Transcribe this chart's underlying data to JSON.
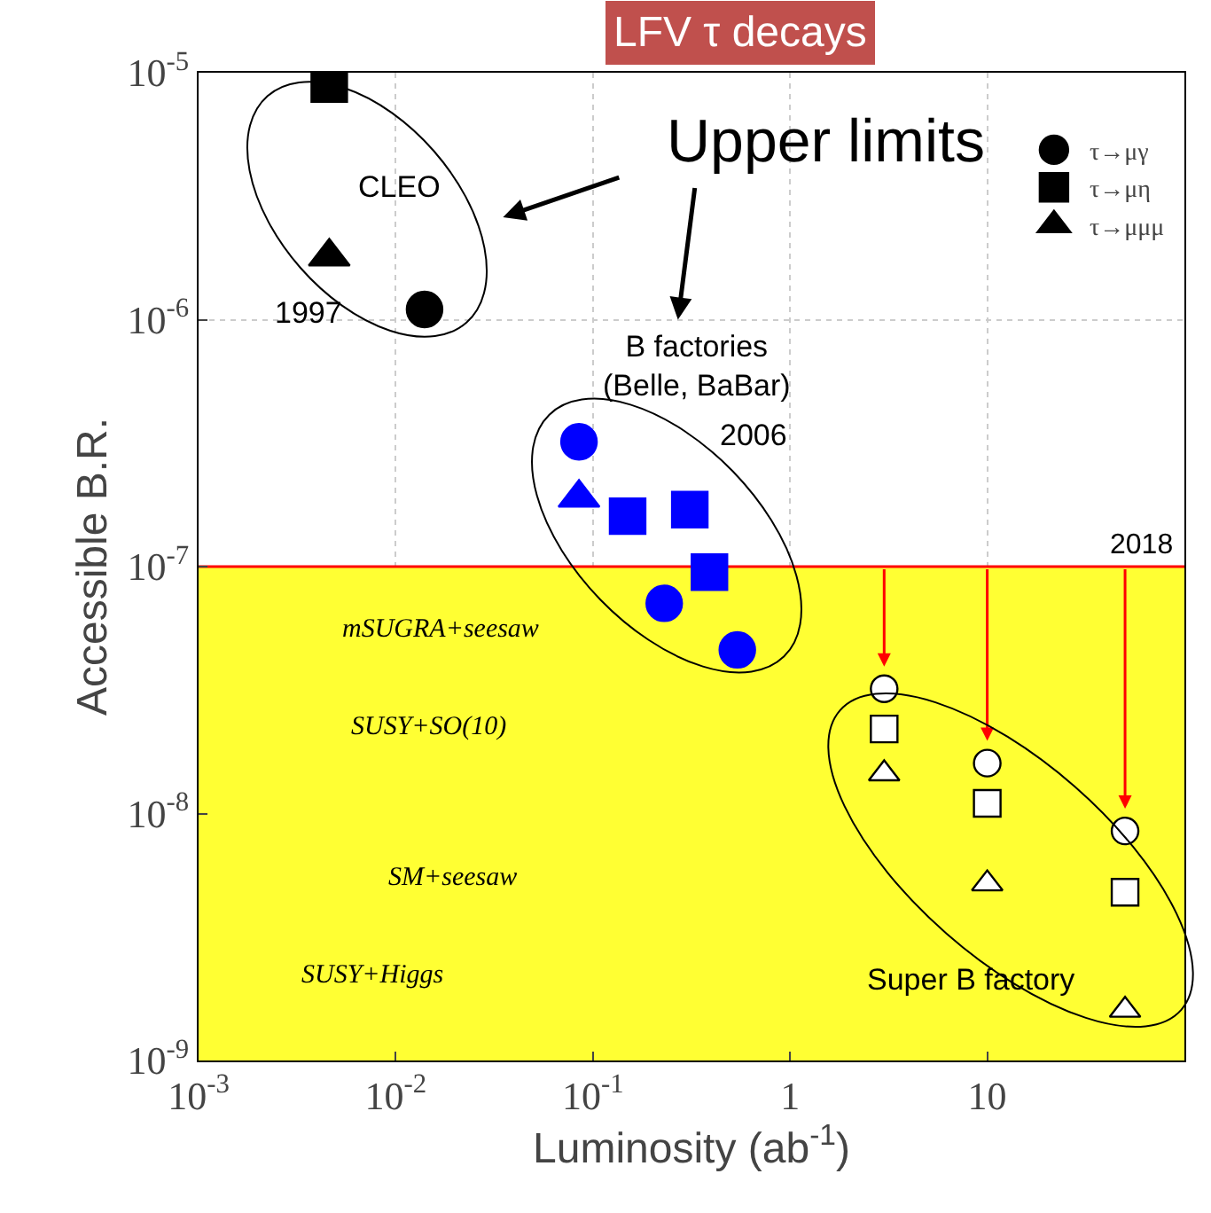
{
  "chart_data": {
    "type": "scatter",
    "title": "LFV τ decays",
    "xlabel": "Luminosity (ab$^{-1}$)",
    "ylabel": "Accessible B.R.",
    "log": "xy",
    "grid": true,
    "legend": "top right",
    "xlim": [
      0.001,
      100
    ],
    "xticks": [
      {
        "value": 0.001,
        "label": "10$^{-3}$"
      },
      {
        "value": 0.01,
        "label": "10$^{-2}$"
      },
      {
        "value": 0.1,
        "label": "10$^{-1}$"
      },
      1,
      10
    ],
    "ylim": [
      1e-09,
      1e-05
    ],
    "yticks": [
      {
        "value": 1e-09,
        "label": "10$^{-9}$"
      },
      {
        "value": 1e-08,
        "label": "10$^{-8}$"
      },
      {
        "value": 1e-07,
        "label": "10$^{-7}$"
      },
      {
        "value": 1e-06,
        "label": "10$^{-6}$"
      },
      {
        "value": 1e-05,
        "label": "10$^{-5}$"
      }
    ],
    "series": [
      {
        "name": "τ→μγ",
        "color": "#000000",
        "marker": "circle",
        "x": [
          0.014
        ],
        "values": [
          1.1e-06
        ]
      },
      {
        "name": "τ→μη",
        "color": "#000000",
        "marker": "square",
        "x": [
          0.0046
        ],
        "values": [
          9e-06
        ]
      },
      {
        "name": "τ→μμμ",
        "color": "#000000",
        "marker": "triangle",
        "x": [
          0.0046
        ],
        "values": [
          1.8e-06
        ]
      },
      {
        "color": "#0000ff",
        "marker": "circle",
        "x": [
          0.085,
          0.23,
          0.54
        ],
        "values": [
          3.2e-07,
          7.1e-08,
          4.6e-08
        ]
      },
      {
        "color": "#0000ff",
        "marker": "square",
        "x": [
          0.15,
          0.31,
          0.39
        ],
        "values": [
          1.6e-07,
          1.7e-07,
          9.5e-08
        ]
      },
      {
        "color": "#0000ff",
        "marker": "triangle",
        "x": [
          0.085
        ],
        "values": [
          1.9e-07
        ]
      },
      {
        "color": "#ffffff",
        "marker": "circle",
        "x": [
          3,
          10,
          50
        ],
        "values": [
          3.2e-08,
          1.6e-08,
          8.5e-09
        ]
      },
      {
        "color": "#ffffff",
        "marker": "square",
        "x": [
          3,
          10,
          50
        ],
        "values": [
          2.2e-08,
          1.1e-08,
          4.8e-09
        ]
      },
      {
        "color": "#ffffff",
        "marker": "triangle",
        "x": [
          3,
          10,
          50
        ],
        "values": [
          1.45e-08,
          5.2e-09,
          1.6e-09
        ]
      }
    ],
    "ref_lines": [
      {
        "axis": "y",
        "value": 1e-07,
        "color": "#ff0000"
      }
    ],
    "bands": [
      {
        "axis": "y",
        "from": 1e-09,
        "to": 1e-07,
        "color": "#ffff33"
      }
    ],
    "annotations": [
      "Upper limits",
      "CLEO",
      "1997",
      "B factories\n(Belle, BaBar)",
      "2006",
      "mSUGRA+seesaw",
      "SUSY+SO(10)",
      "SM+seesaw",
      "SUSY+Higgs",
      "Super B factory",
      {
        "text": "2018",
        "y": 1e-07
      }
    ]
  }
}
